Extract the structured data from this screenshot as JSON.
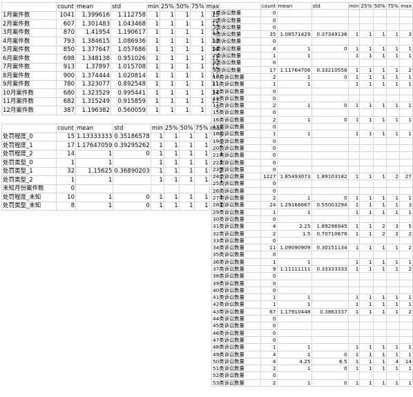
{
  "monthly": {
    "headers": [
      "",
      "count",
      "mean",
      "std",
      "min",
      "25%",
      "50%",
      "75%",
      "max"
    ],
    "rows": [
      [
        "1月案件数",
        "1041",
        "1.399616",
        "1.112758",
        "1",
        "1",
        "1",
        "1",
        "15"
      ],
      [
        "2月案件数",
        "607",
        "1.301483",
        "1.043468",
        "1",
        "1",
        "1",
        "1",
        "15"
      ],
      [
        "3月案件数",
        "870",
        "1.41954",
        "1.190617",
        "1",
        "1",
        "1",
        "1",
        "13"
      ],
      [
        "4月案件数",
        "793",
        "1.384615",
        "1.086936",
        "1",
        "1",
        "1",
        "1",
        "13"
      ],
      [
        "5月案件数",
        "850",
        "1.377647",
        "1.057686",
        "1",
        "1",
        "1",
        "1",
        "14"
      ],
      [
        "6月案件数",
        "698",
        "1.348138",
        "0.951026",
        "1",
        "1",
        "1",
        "1",
        "12"
      ],
      [
        "7月案件数",
        "913",
        "1.37897",
        "1.015708",
        "1",
        "1",
        "1",
        "1",
        "12"
      ],
      [
        "8月案件数",
        "900",
        "1.374444",
        "1.020814",
        "1",
        "1",
        "1",
        "1",
        "13"
      ],
      [
        "9月案件数",
        "780",
        "1.323077",
        "0.892548",
        "1",
        "1",
        "1",
        "1",
        "11"
      ],
      [
        "10月案件数",
        "680",
        "1.323529",
        "0.995441",
        "1",
        "1",
        "1",
        "1",
        "14"
      ],
      [
        "11月案件数",
        "682",
        "1.315249",
        "0.915859",
        "1",
        "1",
        "1",
        "1",
        "12"
      ],
      [
        "12月案件数",
        "387",
        "1.196382",
        "0.560059",
        "1",
        "1",
        "1",
        "1",
        "7"
      ]
    ]
  },
  "penalty": {
    "headers": [
      "",
      "count",
      "mean",
      "std",
      "min",
      "25%",
      "50%",
      "75%",
      "max"
    ],
    "rows": [
      [
        "处罚程度_0",
        "15",
        "1.13333333",
        "0.35186578",
        "1",
        "1",
        "1",
        "1",
        "2"
      ],
      [
        "处罚程度_1",
        "17",
        "1.17647059",
        "0.39295262",
        "1",
        "1",
        "1",
        "1",
        "2"
      ],
      [
        "处罚程度_2",
        "14",
        "1",
        "0",
        "1",
        "1",
        "1",
        "1",
        "1"
      ],
      [
        "处罚类型_0",
        "1",
        "1",
        "",
        "1",
        "1",
        "1",
        "1",
        "1"
      ],
      [
        "处罚类型_1",
        "32",
        "1.15625",
        "0.36890203",
        "1",
        "1",
        "1",
        "1",
        "2"
      ],
      [
        "处罚类型_2",
        "1",
        "1",
        "",
        "1",
        "1",
        "1",
        "1",
        "1"
      ],
      [
        "未知月份案件数",
        "0",
        "",
        "",
        "",
        "",
        "",
        "",
        ""
      ],
      [
        "处罚程度_未知",
        "10",
        "1",
        "0",
        "1",
        "1",
        "1",
        "1",
        "1"
      ],
      [
        "处罚类型_未知",
        "8",
        "1",
        "0",
        "1",
        "1",
        "1",
        "1",
        "1"
      ]
    ]
  },
  "complaints": {
    "headers": [
      "",
      "count",
      "mean",
      "std",
      "min",
      "25%",
      "50%",
      "75%",
      "max"
    ],
    "rows": [
      [
        "1类诉讼数量",
        "0",
        "",
        "",
        "",
        "",
        "",
        "",
        ""
      ],
      [
        "2类诉讼数量",
        "0",
        "",
        "",
        "",
        "",
        "",
        "",
        ""
      ],
      [
        "3类诉讼数量",
        "0",
        "",
        "",
        "",
        "",
        "",
        "",
        ""
      ],
      [
        "4类诉讼数量",
        "35",
        "1.08571429",
        "0.37349136",
        "1",
        "1",
        "1",
        "1",
        "3"
      ],
      [
        "5类诉讼数量",
        "0",
        "",
        "",
        "",
        "",
        "",
        "",
        ""
      ],
      [
        "6类诉讼数量",
        "4",
        "1",
        "0",
        "1",
        "1",
        "1",
        "1",
        "1"
      ],
      [
        "7类诉讼数量",
        "1",
        "1",
        "",
        "1",
        "1",
        "1",
        "1",
        "1"
      ],
      [
        "8类诉讼数量",
        "0",
        "",
        "",
        "",
        "",
        "",
        "",
        ""
      ],
      [
        "9类诉讼数量",
        "17",
        "1.11764706",
        "0.33210558",
        "1",
        "1",
        "1",
        "1",
        "2"
      ],
      [
        "10类诉讼数量",
        "2",
        "1",
        "0",
        "1",
        "1",
        "1",
        "1",
        "1"
      ],
      [
        "11类诉讼数量",
        "1",
        "1",
        "",
        "1",
        "1",
        "1",
        "1",
        "1"
      ],
      [
        "12类诉讼数量",
        "0",
        "",
        "",
        "",
        "",
        "",
        "",
        ""
      ],
      [
        "13类诉讼数量",
        "0",
        "",
        "",
        "",
        "",
        "",
        "",
        ""
      ],
      [
        "14类诉讼数量",
        "2",
        "1",
        "0",
        "1",
        "1",
        "1",
        "1",
        "1"
      ],
      [
        "15类诉讼数量",
        "0",
        "",
        "",
        "",
        "",
        "",
        "",
        ""
      ],
      [
        "16类诉讼数量",
        "2",
        "1",
        "0",
        "1",
        "1",
        "1",
        "1",
        "1"
      ],
      [
        "17类诉讼数量",
        "0",
        "",
        "",
        "",
        "",
        "",
        "",
        ""
      ],
      [
        "18类诉讼数量",
        "1",
        "1",
        "",
        "1",
        "1",
        "1",
        "1",
        "1"
      ],
      [
        "19类诉讼数量",
        "0",
        "",
        "",
        "",
        "",
        "",
        "",
        ""
      ],
      [
        "20类诉讼数量",
        "0",
        "",
        "",
        "",
        "",
        "",
        "",
        ""
      ],
      [
        "21类诉讼数量",
        "0",
        "",
        "",
        "",
        "",
        "",
        "",
        ""
      ],
      [
        "22类诉讼数量",
        "0",
        "",
        "",
        "",
        "",
        "",
        "",
        ""
      ],
      [
        "23类诉讼数量",
        "0",
        "",
        "",
        "",
        "",
        "",
        "",
        ""
      ],
      [
        "24类诉讼数量",
        "1227",
        "1.85493073",
        "1.89103182",
        "1",
        "1",
        "1",
        "2",
        "27"
      ],
      [
        "25类诉讼数量",
        "0",
        "",
        "",
        "",
        "",
        "",
        "",
        ""
      ],
      [
        "26类诉讼数量",
        "0",
        "",
        "",
        "",
        "",
        "",
        "",
        ""
      ],
      [
        "27类诉讼数量",
        "2",
        "1",
        "0",
        "1",
        "1",
        "1",
        "1",
        "1"
      ],
      [
        "28类诉讼数量",
        "24",
        "1.29166667",
        "0.55003294",
        "1",
        "1",
        "1",
        "1",
        "3"
      ],
      [
        "29类诉讼数量",
        "1",
        "1",
        "",
        "1",
        "1",
        "1",
        "1",
        "1"
      ],
      [
        "30类诉讼数量",
        "0",
        "",
        "",
        "",
        "",
        "",
        "",
        ""
      ],
      [
        "31类诉讼数量",
        "4",
        "2.25",
        "1.89296945",
        "1",
        "1",
        "2",
        "3",
        "5"
      ],
      [
        "32类诉讼数量",
        "2",
        "1.5",
        "0.70710678",
        "1",
        "1",
        "2",
        "2",
        "2"
      ],
      [
        "33类诉讼数量",
        "0",
        "",
        "",
        "",
        "",
        "",
        "",
        ""
      ],
      [
        "34类诉讼数量",
        "11",
        "1.09090909",
        "0.30151134",
        "1",
        "1",
        "1",
        "1",
        "2"
      ],
      [
        "35类诉讼数量",
        "0",
        "",
        "",
        "",
        "",
        "",
        "",
        ""
      ],
      [
        "36类诉讼数量",
        "1",
        "1",
        "",
        "1",
        "1",
        "1",
        "1",
        "1"
      ],
      [
        "37类诉讼数量",
        "9",
        "1.11111111",
        "0.33333333",
        "1",
        "1",
        "1",
        "1",
        "2"
      ],
      [
        "38类诉讼数量",
        "0",
        "",
        "",
        "",
        "",
        "",
        "",
        ""
      ],
      [
        "39类诉讼数量",
        "0",
        "",
        "",
        "",
        "",
        "",
        "",
        ""
      ],
      [
        "40类诉讼数量",
        "0",
        "",
        "",
        "",
        "",
        "",
        "",
        ""
      ],
      [
        "41类诉讼数量",
        "1",
        "1",
        "",
        "1",
        "1",
        "1",
        "1",
        "1"
      ],
      [
        "42类诉讼数量",
        "1",
        "1",
        "",
        "1",
        "1",
        "1",
        "1",
        "1"
      ],
      [
        "43类诉讼数量",
        "67",
        "1.17910448",
        "0.3863337",
        "1",
        "1",
        "1",
        "1",
        "2"
      ],
      [
        "44类诉讼数量",
        "0",
        "",
        "",
        "",
        "",
        "",
        "",
        ""
      ],
      [
        "45类诉讼数量",
        "0",
        "",
        "",
        "",
        "",
        "",
        "",
        ""
      ],
      [
        "46类诉讼数量",
        "0",
        "",
        "",
        "",
        "",
        "",
        "",
        ""
      ],
      [
        "47类诉讼数量",
        "0",
        "",
        "",
        "",
        "",
        "",
        "",
        ""
      ],
      [
        "48类诉讼数量",
        "1",
        "1",
        "",
        "1",
        "1",
        "1",
        "1",
        "1"
      ],
      [
        "49类诉讼数量",
        "4",
        "1",
        "0",
        "1",
        "1",
        "1",
        "1",
        "1"
      ],
      [
        "50类诉讼数量",
        "4",
        "4.25",
        "6.5",
        "1",
        "1",
        "1",
        "4",
        "14"
      ],
      [
        "51类诉讼数量",
        "2",
        "1",
        "0",
        "1",
        "1",
        "1",
        "1",
        "1"
      ],
      [
        "52类诉讼数量",
        "0",
        "",
        "",
        "",
        "",
        "",
        "",
        ""
      ],
      [
        "53类诉讼数量",
        "2",
        "1",
        "0",
        "1",
        "1",
        "1",
        "1",
        "1"
      ]
    ]
  }
}
